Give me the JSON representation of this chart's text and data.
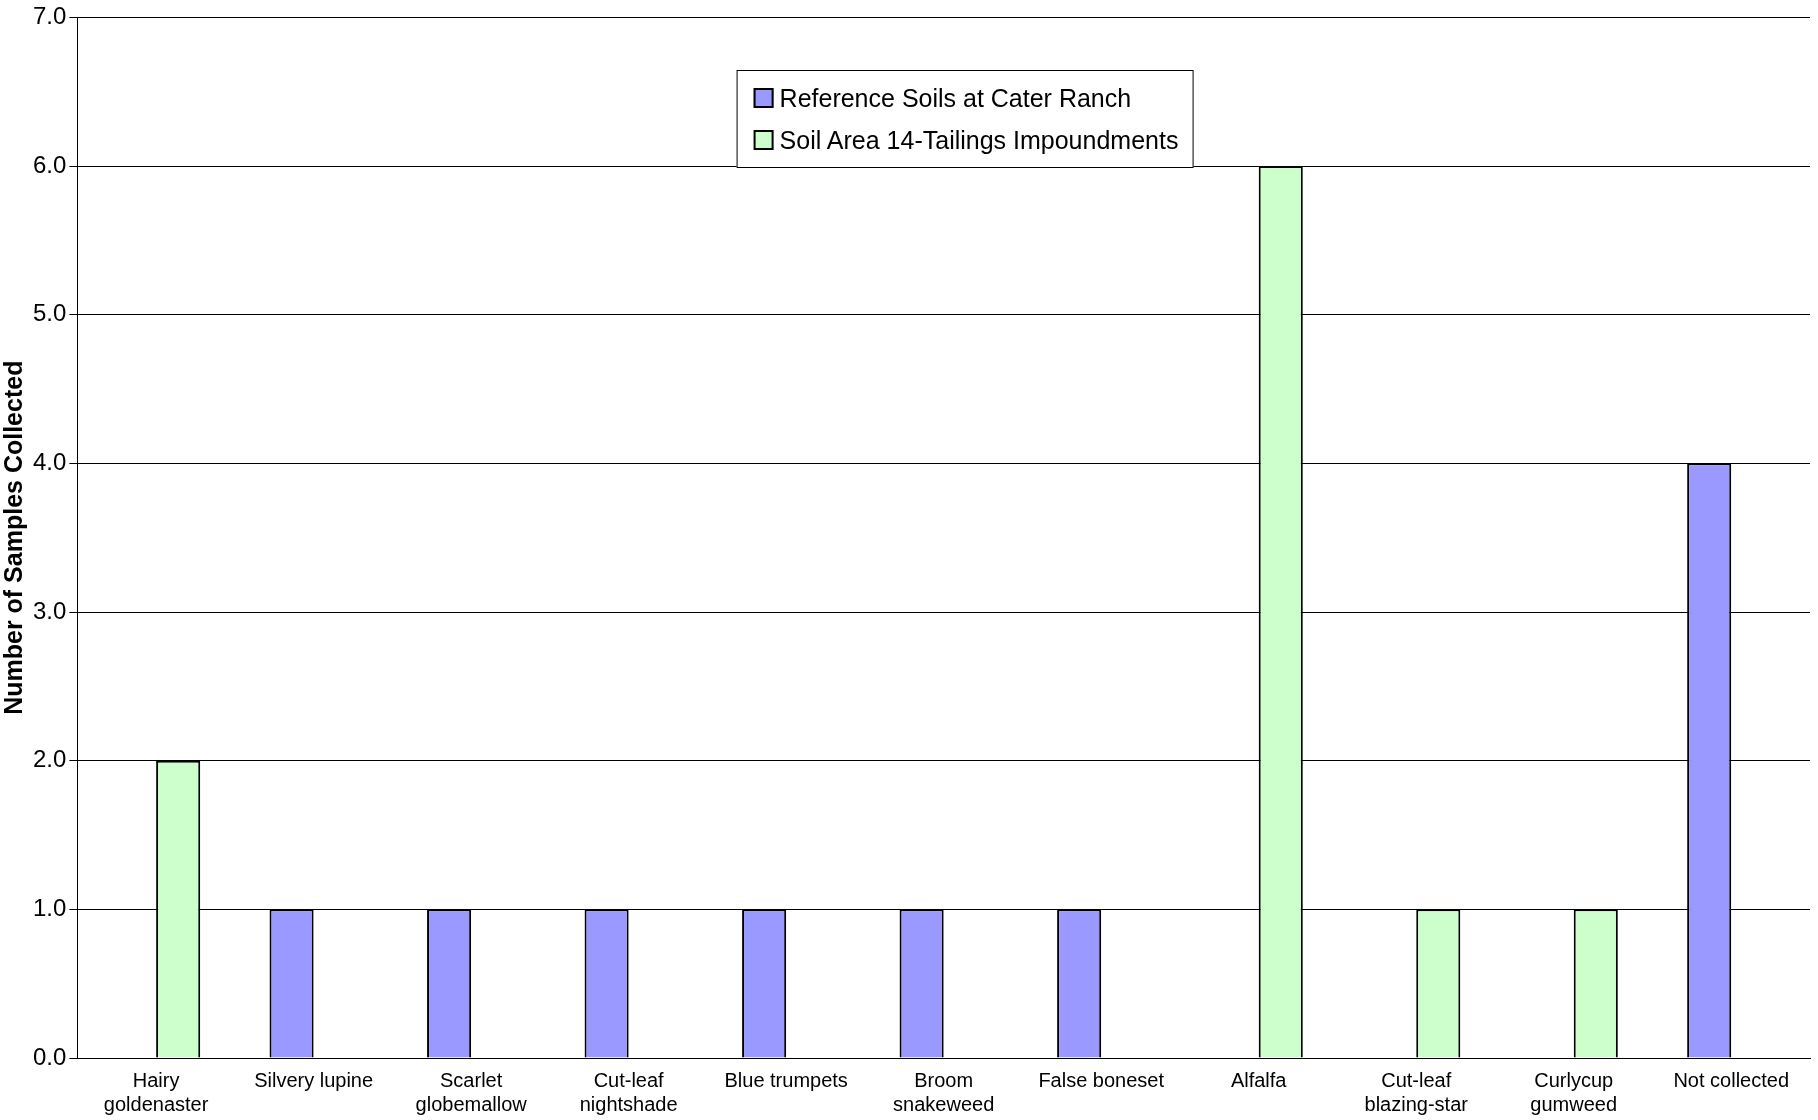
{
  "chart_data": {
    "type": "bar",
    "ylabel": "Number of Samples Collected",
    "categories": [
      "Hairy goldenaster",
      "Silvery lupine",
      "Scarlet globemallow",
      "Cut-leaf nightshade",
      "Blue trumpets",
      "Broom snakeweed",
      "False boneset",
      "Alfalfa",
      "Cut-leaf blazing-star",
      "Curlycup gumweed",
      "Not collected"
    ],
    "series": [
      {
        "name": "Reference Soils at Cater Ranch",
        "color": "#9999ff",
        "values": [
          null,
          1,
          1,
          1,
          1,
          1,
          1,
          null,
          null,
          null,
          4
        ]
      },
      {
        "name": "Soil Area 14-Tailings Impoundments",
        "color": "#ccffcc",
        "values": [
          2,
          null,
          null,
          null,
          null,
          null,
          null,
          6,
          1,
          1,
          null
        ]
      }
    ],
    "ylim": [
      0,
      7
    ],
    "yticks": [
      {
        "value": 0,
        "label": "0.0"
      },
      {
        "value": 1,
        "label": "1.0"
      },
      {
        "value": 2,
        "label": "2.0"
      },
      {
        "value": 3,
        "label": "3.0"
      },
      {
        "value": 4,
        "label": "4.0"
      },
      {
        "value": 5,
        "label": "5.0"
      },
      {
        "value": 6,
        "label": "6.0"
      },
      {
        "value": 7,
        "label": "7.0"
      }
    ],
    "grid": "y",
    "legend": "top"
  }
}
